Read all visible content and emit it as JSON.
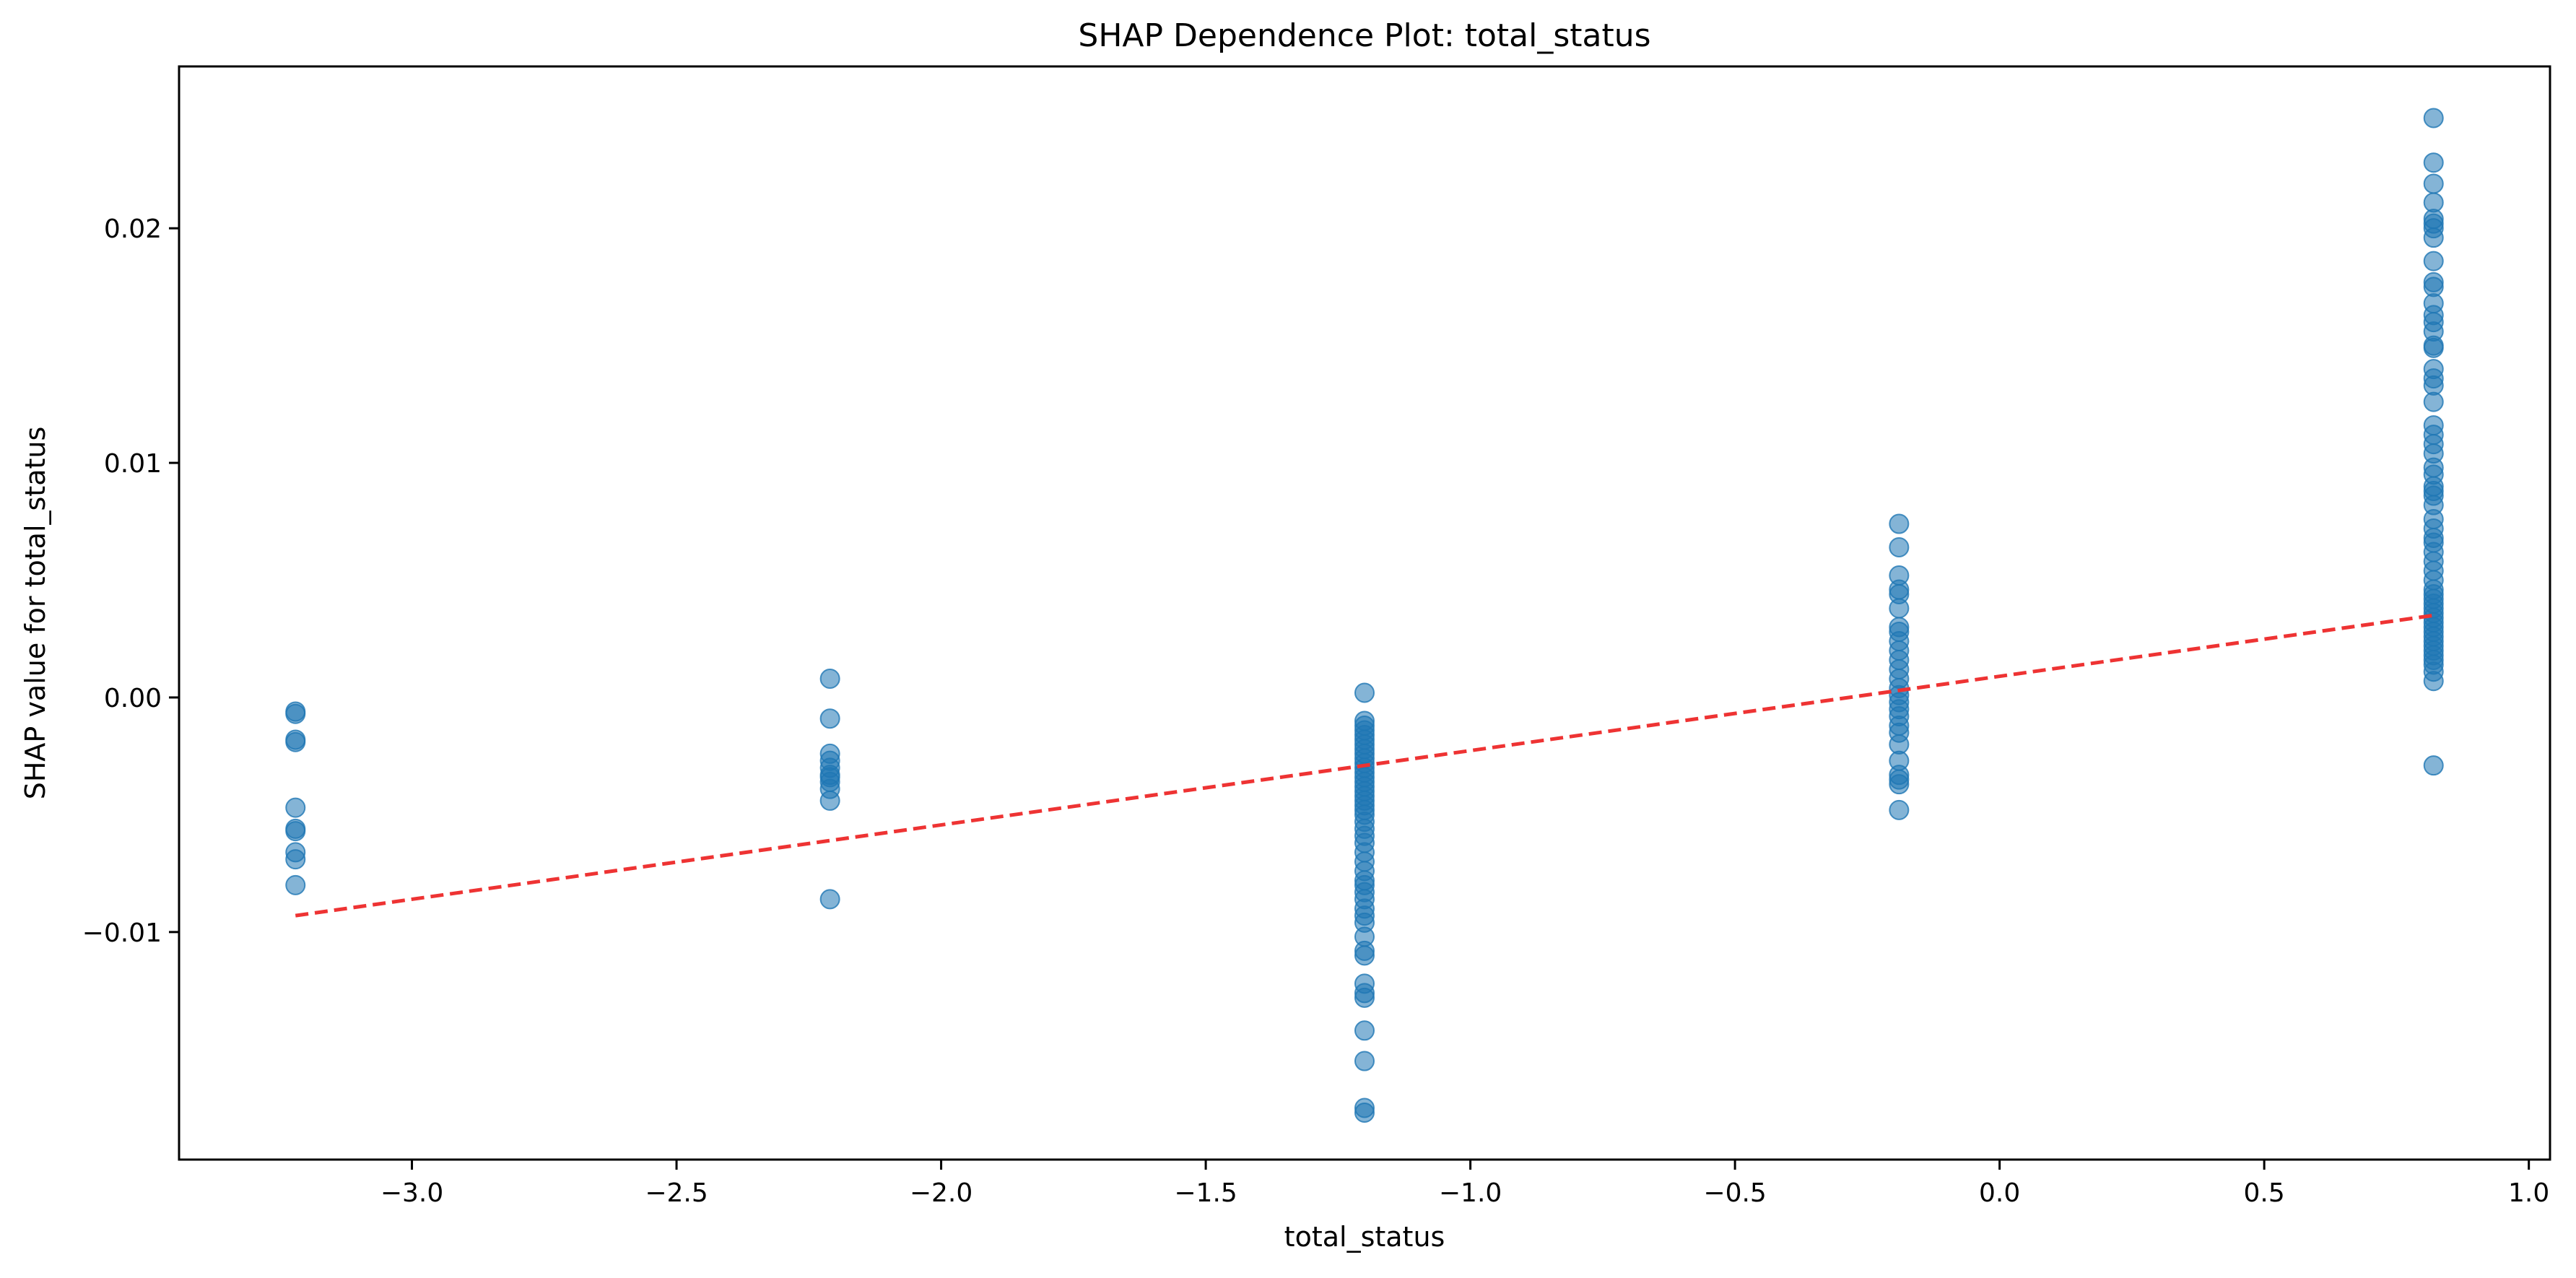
{
  "chart_data": {
    "type": "scatter",
    "title": "SHAP Dependence Plot: total_status",
    "xlabel": "total_status",
    "ylabel": "SHAP value for total_status",
    "xlim": [
      -3.44,
      1.04
    ],
    "ylim": [
      -0.0197,
      0.0269
    ],
    "xticks": [
      -3.0,
      -2.5,
      -2.0,
      -1.5,
      -1.0,
      -0.5,
      0.0,
      0.5,
      1.0
    ],
    "xtick_labels": [
      "−3.0",
      "−2.5",
      "−2.0",
      "−1.5",
      "−1.0",
      "−0.5",
      "0.0",
      "0.5",
      "1.0"
    ],
    "yticks": [
      -0.01,
      0.0,
      0.01,
      0.02
    ],
    "ytick_labels": [
      "−0.01",
      "0.00",
      "0.01",
      "0.02"
    ],
    "grid": false,
    "colors": {
      "points": "#1f77b4",
      "trend": "#ee3333"
    },
    "series": [
      {
        "kind": "points",
        "groups": [
          {
            "x": -3.22,
            "y": [
              -0.0006,
              -0.0007,
              -0.0018,
              -0.0019,
              -0.0047,
              -0.0056,
              -0.0057,
              -0.0066,
              -0.0069,
              -0.008
            ]
          },
          {
            "x": -2.21,
            "y": [
              0.0008,
              -0.0009,
              -0.0024,
              -0.0027,
              -0.003,
              -0.0033,
              -0.0034,
              -0.0036,
              -0.0039,
              -0.0044,
              -0.0086
            ]
          },
          {
            "x": -1.2,
            "y": [
              0.0002,
              -0.001,
              -0.0012,
              -0.0014,
              -0.0016,
              -0.0018,
              -0.002,
              -0.0022,
              -0.0024,
              -0.0026,
              -0.0028,
              -0.003,
              -0.0032,
              -0.0034,
              -0.0036,
              -0.0038,
              -0.004,
              -0.0042,
              -0.0044,
              -0.0046,
              -0.0048,
              -0.005,
              -0.0053,
              -0.0056,
              -0.0059,
              -0.0062,
              -0.0066,
              -0.007,
              -0.0074,
              -0.0078,
              -0.008,
              -0.0083,
              -0.0086,
              -0.009,
              -0.0093,
              -0.0096,
              -0.0102,
              -0.0108,
              -0.011,
              -0.0122,
              -0.0126,
              -0.0128,
              -0.0142,
              -0.0155,
              -0.0175,
              -0.0177
            ]
          },
          {
            "x": -0.19,
            "y": [
              0.0074,
              0.0064,
              0.0052,
              0.0046,
              0.0044,
              0.0038,
              0.003,
              0.0028,
              0.0024,
              0.002,
              0.0016,
              0.0012,
              0.0008,
              0.0004,
              0.0001,
              -0.0002,
              -0.0005,
              -0.0008,
              -0.0012,
              -0.0015,
              -0.002,
              -0.0027,
              -0.0033,
              -0.0035,
              -0.0037,
              -0.0048
            ]
          },
          {
            "x": 0.82,
            "y": [
              0.0247,
              0.0228,
              0.0219,
              0.0211,
              0.0204,
              0.0202,
              0.02,
              0.0196,
              0.0186,
              0.0177,
              0.0175,
              0.0168,
              0.0163,
              0.016,
              0.0156,
              0.015,
              0.0149,
              0.014,
              0.0136,
              0.0133,
              0.0126,
              0.0116,
              0.0112,
              0.0108,
              0.0104,
              0.0098,
              0.0095,
              0.009,
              0.0088,
              0.0086,
              0.0082,
              0.0076,
              0.0072,
              0.0068,
              0.0066,
              0.0062,
              0.0058,
              0.0054,
              0.005,
              0.0046,
              0.0044,
              0.0042,
              0.004,
              0.0038,
              0.0036,
              0.0034,
              0.0032,
              0.003,
              0.0028,
              0.0026,
              0.0024,
              0.0022,
              0.002,
              0.0018,
              0.0016,
              0.0014,
              0.0011,
              0.0007,
              -0.0029
            ]
          }
        ]
      },
      {
        "kind": "trend",
        "x": [
          -3.22,
          0.82
        ],
        "y": [
          -0.0093,
          0.0035
        ]
      }
    ]
  }
}
